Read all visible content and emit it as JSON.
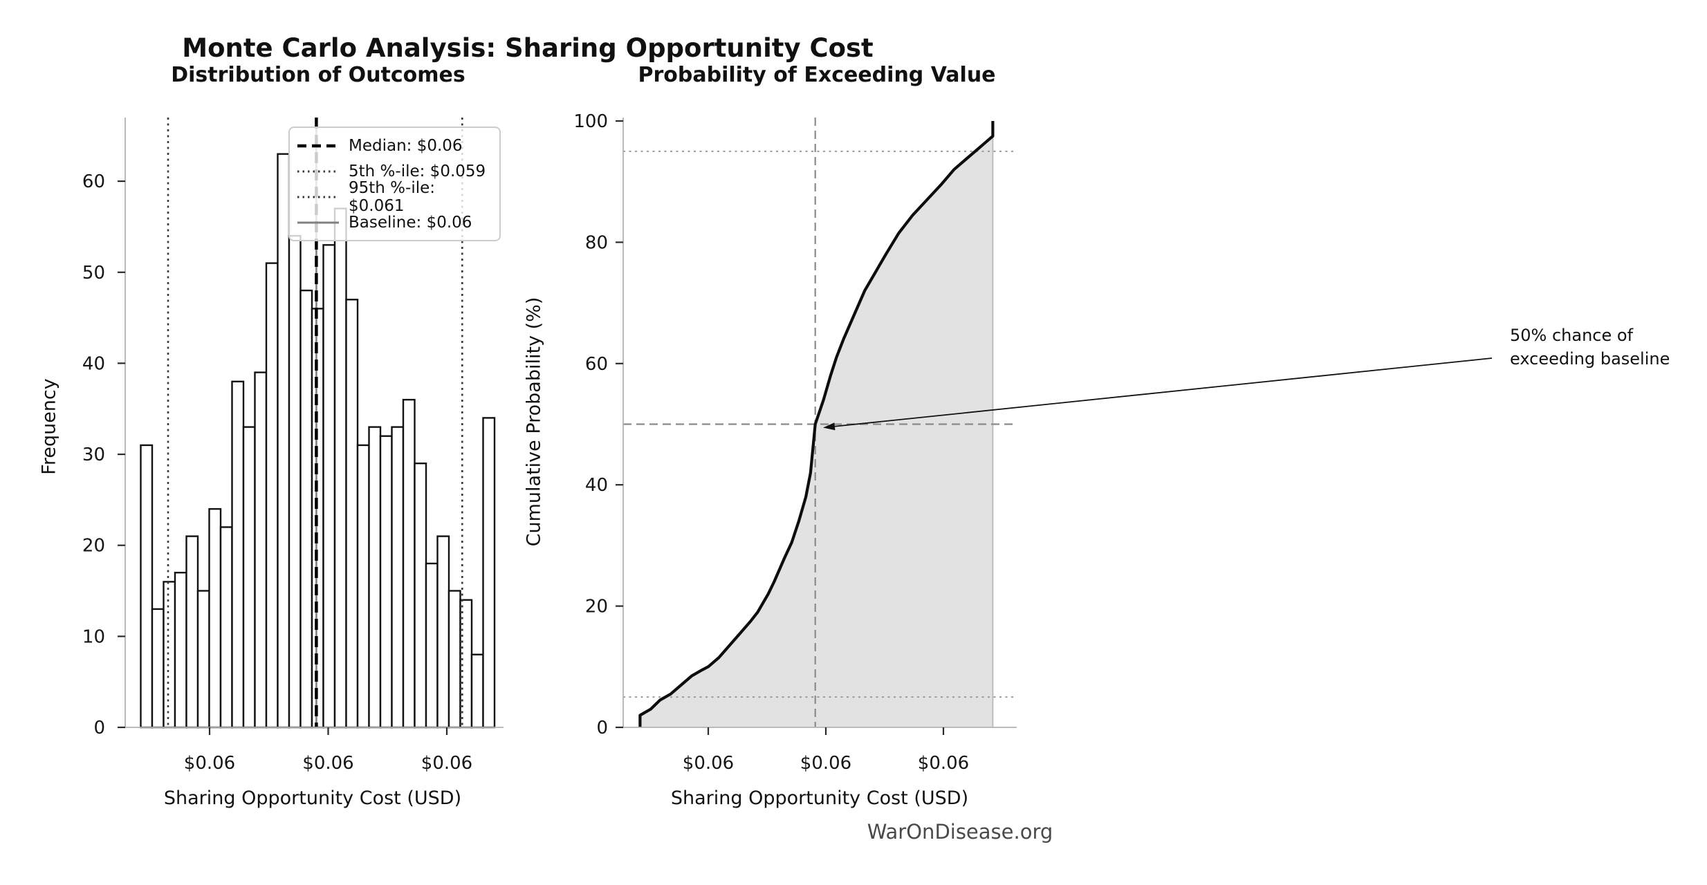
{
  "figure": {
    "title": "Monte Carlo Analysis: Sharing Opportunity Cost",
    "watermark": "WarOnDisease.org",
    "background": "#ffffff"
  },
  "chart_data": [
    {
      "type": "bar",
      "subtype": "histogram",
      "title": "Distribution of Outcomes",
      "xlabel": "Sharing Opportunity Cost (USD)",
      "ylabel": "Frequency",
      "bar_fill": "#ffffff",
      "bar_edge": "#111111",
      "bin_start": 0.05842,
      "bin_width": 9.62e-05,
      "values": [
        31,
        13,
        16,
        17,
        21,
        15,
        24,
        22,
        38,
        33,
        39,
        51,
        63,
        54,
        48,
        46,
        53,
        57,
        47,
        31,
        33,
        32,
        33,
        36,
        29,
        18,
        21,
        15,
        14,
        8,
        34
      ],
      "x_ticks": [
        {
          "value": 0.059,
          "label": "$0.06"
        },
        {
          "value": 0.06,
          "label": "$0.06"
        },
        {
          "value": 0.061,
          "label": "$0.06"
        }
      ],
      "y_ticks": [
        0,
        10,
        20,
        30,
        40,
        50,
        60
      ],
      "ylim": [
        0,
        67
      ],
      "grid": false,
      "legend_position": "upper right",
      "legend": {
        "items": [
          {
            "key": "median",
            "label": "Median: $0.06",
            "style": "dashed",
            "color": "#000000",
            "value": 0.0599
          },
          {
            "key": "p5",
            "label": "5th %-ile: $0.059",
            "style": "dotted",
            "color": "#3a3a3a",
            "value": 0.05865
          },
          {
            "key": "p95",
            "label": "95th %-ile: $0.061",
            "style": "dotted",
            "color": "#3a3a3a",
            "value": 0.06113
          },
          {
            "key": "baseline",
            "label": "Baseline: $0.06",
            "style": "solid",
            "color": "#808080",
            "value": 0.0599
          }
        ]
      }
    },
    {
      "type": "line",
      "subtype": "empirical-cdf",
      "title": "Probability of Exceeding Value",
      "xlabel": "Sharing Opportunity Cost (USD)",
      "ylabel": "Cumulative Probability (%)",
      "line_color": "#0d0d0d",
      "fill_color": "#e2e2e2",
      "x_ticks": [
        {
          "value": 0.059,
          "label": "$0.06"
        },
        {
          "value": 0.06,
          "label": "$0.06"
        },
        {
          "value": 0.061,
          "label": "$0.06"
        }
      ],
      "y_ticks": [
        0,
        20,
        40,
        60,
        80,
        100
      ],
      "ylim": [
        0,
        100.5
      ],
      "grid": false,
      "points": [
        [
          0.05842,
          0
        ],
        [
          0.05842,
          2
        ],
        [
          0.05851,
          3
        ],
        [
          0.05859,
          4.5
        ],
        [
          0.05868,
          5.5
        ],
        [
          0.05877,
          7
        ],
        [
          0.05886,
          8.5
        ],
        [
          0.05895,
          9.5
        ],
        [
          0.059,
          10
        ],
        [
          0.05909,
          11.5
        ],
        [
          0.05918,
          13.5
        ],
        [
          0.05927,
          15.5
        ],
        [
          0.05936,
          17.5
        ],
        [
          0.05942,
          19
        ],
        [
          0.05951,
          22
        ],
        [
          0.05956,
          24
        ],
        [
          0.05965,
          28
        ],
        [
          0.05971,
          30.5
        ],
        [
          0.05977,
          34
        ],
        [
          0.05983,
          38
        ],
        [
          0.05987,
          42
        ],
        [
          0.05991,
          50
        ],
        [
          0.05998,
          54
        ],
        [
          0.06004,
          58
        ],
        [
          0.06009,
          61
        ],
        [
          0.06015,
          64
        ],
        [
          0.06024,
          68
        ],
        [
          0.06033,
          72
        ],
        [
          0.06042,
          75
        ],
        [
          0.06051,
          78
        ],
        [
          0.06062,
          81.5
        ],
        [
          0.06074,
          84.5
        ],
        [
          0.06086,
          87
        ],
        [
          0.06098,
          89.5
        ],
        [
          0.06109,
          92
        ],
        [
          0.06121,
          94
        ],
        [
          0.0613,
          95.5
        ],
        [
          0.06136,
          96.5
        ],
        [
          0.06142,
          97.5
        ],
        [
          0.06142,
          100
        ]
      ],
      "guides": {
        "h5": 5,
        "h50": 50,
        "h95": 95,
        "v_median": 0.05991
      },
      "annotation": {
        "line1": "50% chance of",
        "line2": "exceeding baseline",
        "target": {
          "x": 0.05991,
          "y": 50
        }
      }
    }
  ]
}
